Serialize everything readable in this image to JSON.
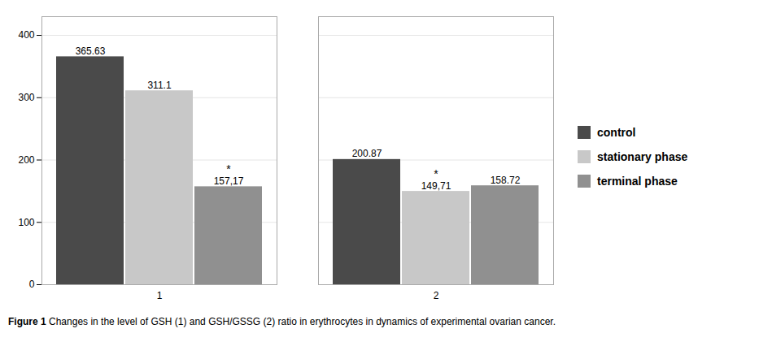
{
  "chart_data": {
    "type": "bar",
    "categories": [
      "1",
      "2"
    ],
    "series": [
      {
        "name": "control",
        "color": "#4a4a4a",
        "values": [
          365.63,
          200.87
        ],
        "value_labels": [
          "365.63",
          "200.87"
        ]
      },
      {
        "name": "stationary phase",
        "color": "#c8c8c8",
        "values": [
          311.1,
          149.71
        ],
        "value_labels": [
          "311.1",
          "149,71"
        ]
      },
      {
        "name": "terminal phase",
        "color": "#909090",
        "values": [
          157.17,
          158.72
        ],
        "value_labels": [
          "157,17",
          "158.72"
        ]
      }
    ],
    "ylim": [
      0,
      430
    ],
    "yticks": [
      0,
      100,
      200,
      300,
      400
    ],
    "grid": true,
    "legend": "right",
    "data_labels": true,
    "annotations": [
      {
        "text": "*",
        "series": "terminal phase",
        "category": "1"
      },
      {
        "text": "*",
        "series": "stationary phase",
        "category": "2"
      }
    ],
    "caption": [
      "Figure 1",
      " Changes in the level of GSH (1) and GSH/GSSG (2) ratio in erythrocytes in dynamics of experimental ovarian cancer."
    ]
  }
}
